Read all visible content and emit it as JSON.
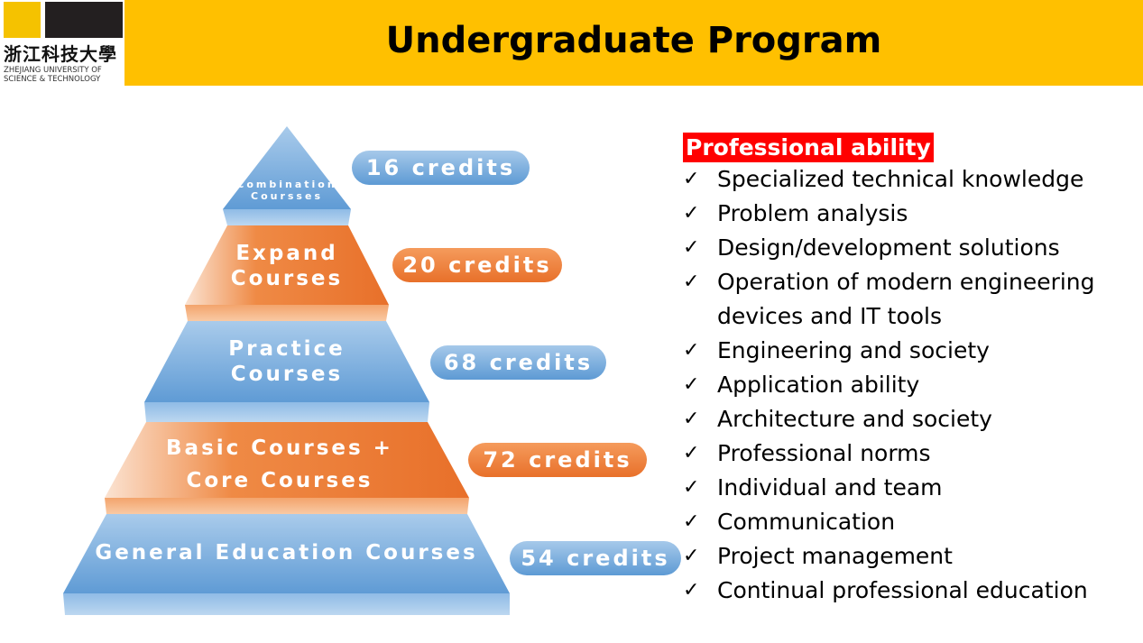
{
  "header": {
    "title": "Undergraduate Program"
  },
  "logo": {
    "chinese": "浙江科技大學",
    "english_line1": "ZHEJIANG UNIVERSITY OF",
    "english_line2": "SCIENCE & TECHNOLOGY"
  },
  "pyramid": [
    {
      "label_line1": "Combination",
      "label_line2": "Coursses",
      "credits": "16 credits",
      "color": "#7FB0E0"
    },
    {
      "label_line1": "Expand",
      "label_line2": "Courses",
      "credits": "20 credits",
      "color": "#ED7D31"
    },
    {
      "label_line1": "Practice",
      "label_line2": "Courses",
      "credits": "68 credits",
      "color": "#7FB0E0"
    },
    {
      "label_line1": "Basic Courses +",
      "label_line2": "Core Courses",
      "credits": "72 credits",
      "color": "#ED7D31"
    },
    {
      "label_line1": "General Education Courses",
      "label_line2": "",
      "credits": "54 credits",
      "color": "#7FB0E0"
    }
  ],
  "ability": {
    "heading": "Professional ability",
    "check_icon": "✓",
    "items": [
      "Specialized technical knowledge",
      "Problem analysis",
      "Design/development solutions",
      "Operation of modern engineering devices and IT tools",
      "Engineering and society",
      "Application ability",
      "Architecture and society",
      "Professional norms",
      "Individual and team",
      "Communication",
      "Project management",
      "Continual professional education"
    ]
  }
}
